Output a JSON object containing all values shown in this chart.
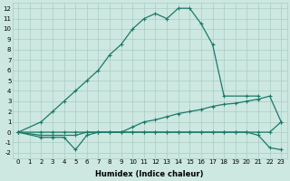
{
  "bg_color": "#cce8e0",
  "grid_color": "#aaccc4",
  "line_color": "#1a7a6a",
  "line_width": 0.9,
  "marker": "+",
  "marker_size": 3.5,
  "marker_ew": 0.8,
  "xlim": [
    -0.5,
    23.5
  ],
  "ylim": [
    -2.5,
    12.5
  ],
  "xticks": [
    0,
    1,
    2,
    3,
    4,
    5,
    6,
    7,
    8,
    9,
    10,
    11,
    12,
    13,
    14,
    15,
    16,
    17,
    18,
    19,
    20,
    21,
    22,
    23
  ],
  "yticks": [
    -2,
    -1,
    0,
    1,
    2,
    3,
    4,
    5,
    6,
    7,
    8,
    9,
    10,
    11,
    12
  ],
  "xlabel": "Humidex (Indice chaleur)",
  "xlabel_fontsize": 6,
  "tick_fontsize": 5,
  "line1_x": [
    0,
    2,
    3,
    4,
    5,
    6,
    7,
    8,
    9,
    10,
    11,
    12,
    13,
    14,
    15,
    16,
    17,
    18,
    20,
    21
  ],
  "line1_y": [
    0,
    1,
    2,
    3,
    4,
    5,
    6,
    7.5,
    8.5,
    10,
    11,
    11.5,
    11,
    12,
    12,
    10.5,
    8.5,
    3.5,
    3.5,
    3.5
  ],
  "line2_x": [
    0,
    2,
    3,
    4,
    5,
    6,
    7,
    8,
    9,
    10,
    11,
    12,
    13,
    14,
    15,
    16,
    17,
    18,
    19,
    20,
    21,
    22,
    23
  ],
  "line2_y": [
    0,
    0,
    0,
    0,
    0,
    0,
    0,
    0,
    0,
    0.5,
    1,
    1.2,
    1.5,
    1.8,
    2,
    2.2,
    2.5,
    2.7,
    2.8,
    3,
    3.2,
    3.5,
    1
  ],
  "line3_x": [
    0,
    2,
    3,
    5,
    6,
    7,
    8,
    9,
    10,
    11,
    12,
    13,
    14,
    15,
    16,
    17,
    18,
    19,
    20,
    21,
    22,
    23
  ],
  "line3_y": [
    0,
    -0.3,
    -0.3,
    -0.3,
    0,
    0,
    0,
    0,
    0,
    0,
    0,
    0,
    0,
    0,
    0,
    0,
    0,
    0,
    0,
    0,
    0,
    1
  ],
  "line4_x": [
    0,
    2,
    3,
    4,
    5,
    6,
    7,
    8,
    9,
    10,
    11,
    12,
    13,
    14,
    15,
    16,
    17,
    18,
    19,
    20,
    21,
    22,
    23
  ],
  "line4_y": [
    0,
    -0.5,
    -0.5,
    -0.5,
    -1.7,
    -0.3,
    0,
    0,
    0,
    0,
    0,
    0,
    0,
    0,
    0,
    0,
    0,
    0,
    0,
    0,
    -0.3,
    -1.5,
    -1.7
  ]
}
